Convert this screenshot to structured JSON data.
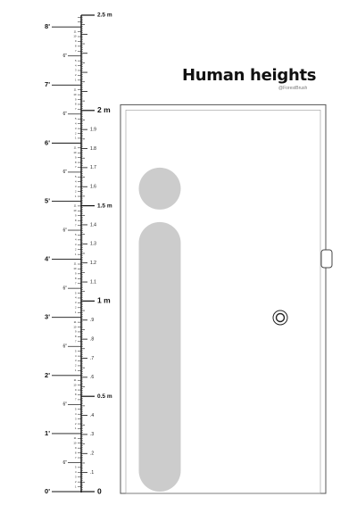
{
  "title": "Human heights",
  "credit": "@ForestBrush",
  "colors": {
    "ink": "#111111",
    "figure": "#cccccc",
    "door_frame": "#555555",
    "background": "#ffffff"
  },
  "scale": {
    "ft_max": 8,
    "m_max": 2.5,
    "feet_labels": [
      "0'",
      "1'",
      "2'",
      "3'",
      "4'",
      "5'",
      "6'",
      "7'",
      "8'"
    ],
    "half_foot_label": "6\"",
    "inch_labels": [
      "1",
      "2",
      "3",
      "4",
      "5",
      "6",
      "7",
      "8",
      "9",
      "10",
      "11"
    ],
    "major_meter_labels": [
      "0",
      "0.5 m",
      "1 m",
      "1.5 m",
      "2 m",
      "2.5 m"
    ],
    "decimeter_labels": [
      ".1",
      ".2",
      ".3",
      ".4",
      ".6",
      ".7",
      ".8",
      ".9",
      "1.1",
      "1.2",
      "1.3",
      "1.4",
      "1.6",
      "1.7",
      "1.8",
      "1.9"
    ]
  },
  "figure": {
    "shape": "person-silhouette (head circle + rounded body)",
    "height_m": 1.7
  },
  "door": {
    "height_m": 2.03,
    "knob_icon": "door-knob-icon",
    "hinge_icon": "hinge-icon"
  }
}
